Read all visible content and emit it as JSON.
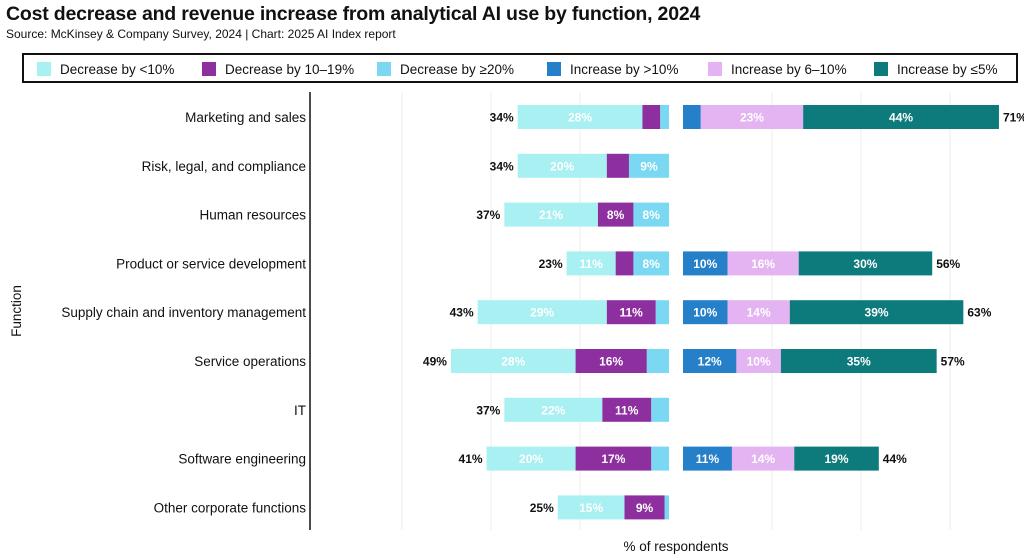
{
  "chart_data": {
    "type": "bar",
    "title": "Cost decrease and revenue increase from analytical AI use by function, 2024",
    "subtitle": "Source: McKinsey & Company Survey, 2024 | Chart: 2025 AI Index report",
    "xlabel": "% of respondents",
    "ylabel": "Function",
    "legend_position": "top",
    "grid": true,
    "categories": [
      "Marketing and sales",
      "Risk, legal, and compliance",
      "Human resources",
      "Product or service development",
      "Supply chain and inventory management",
      "Service operations",
      "IT",
      "Software engineering",
      "Other corporate functions"
    ],
    "decrease_totals": [
      "34%",
      "34%",
      "37%",
      "23%",
      "43%",
      "49%",
      "37%",
      "41%",
      "25%"
    ],
    "increase_totals": [
      "71%",
      "",
      "",
      "56%",
      "63%",
      "57%",
      "",
      "44%",
      ""
    ],
    "series": [
      {
        "name": "Decrease by <10%",
        "group": "decrease",
        "color": "#a8f0f2",
        "values": [
          28,
          20,
          21,
          11,
          29,
          28,
          22,
          20,
          15
        ]
      },
      {
        "name": "Decrease by 10–19%",
        "group": "decrease",
        "color": "#8e2fa0",
        "values": [
          4,
          5,
          8,
          4,
          11,
          16,
          11,
          17,
          9
        ]
      },
      {
        "name": "Decrease by ≥20%",
        "group": "decrease",
        "color": "#7ad8f2",
        "values": [
          2,
          9,
          8,
          8,
          3,
          5,
          4,
          4,
          1
        ]
      },
      {
        "name": "Increase by >10%",
        "group": "increase",
        "color": "#2680c9",
        "values": [
          4,
          0,
          0,
          10,
          10,
          12,
          0,
          11,
          0
        ]
      },
      {
        "name": "Increase by 6–10%",
        "group": "increase",
        "color": "#e4b4f2",
        "values": [
          23,
          0,
          0,
          16,
          14,
          10,
          0,
          14,
          0
        ]
      },
      {
        "name": "Increase by ≤5%",
        "group": "increase",
        "color": "#0d7a7c",
        "values": [
          44,
          0,
          0,
          30,
          39,
          35,
          0,
          19,
          0
        ]
      }
    ],
    "data_labels": [
      [
        "28%",
        "",
        "",
        "",
        "23%",
        "44%"
      ],
      [
        "20%",
        "",
        "9%",
        "",
        "",
        ""
      ],
      [
        "21%",
        "8%",
        "8%",
        "",
        "",
        ""
      ],
      [
        "11%",
        "",
        "8%",
        "10%",
        "16%",
        "30%"
      ],
      [
        "29%",
        "11%",
        "",
        "10%",
        "14%",
        "39%"
      ],
      [
        "28%",
        "16%",
        "",
        "12%",
        "10%",
        "35%"
      ],
      [
        "22%",
        "11%",
        "",
        "",
        "",
        ""
      ],
      [
        "20%",
        "17%",
        "",
        "11%",
        "14%",
        "19%"
      ],
      [
        "15%",
        "9%",
        "",
        "",
        "",
        ""
      ]
    ]
  }
}
